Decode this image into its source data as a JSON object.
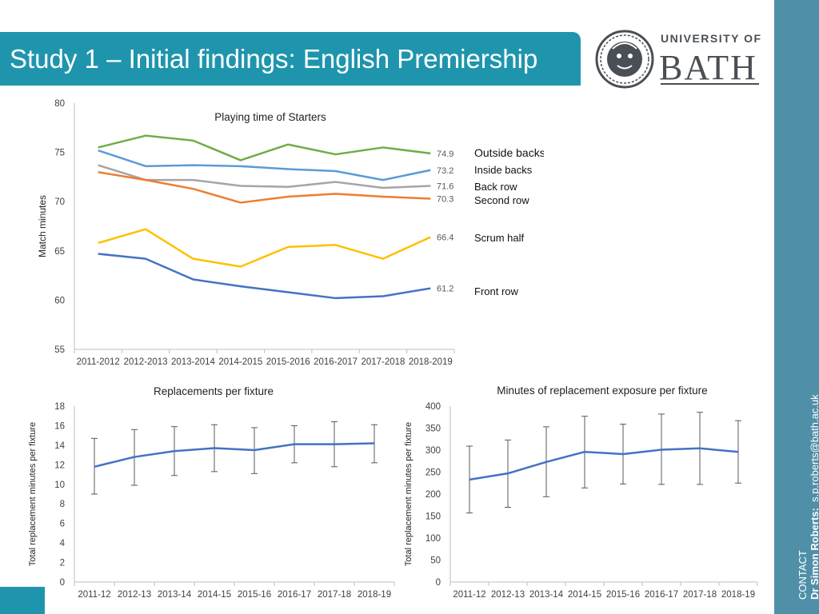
{
  "header": {
    "title": "Study 1 – Initial findings: English Premiership"
  },
  "logo": {
    "line1": "UNIVERSITY OF",
    "line2": "BATH",
    "icon": "bath-seal-icon"
  },
  "sidebar": {
    "contact_label": "CONTACT",
    "name": "Dr Simon Roberts:",
    "email": "s.p.roberts@bath.ac.uk"
  },
  "colors": {
    "accent": "#1f95ad",
    "sidebar": "#4f90a8",
    "front_row": "#4472c4",
    "scrum_half": "#ffc000",
    "second_row": "#ed7d31",
    "back_row": "#a5a5a5",
    "inside_backs": "#5b9bd5",
    "outside_backs": "#70ad47"
  },
  "chart_data": [
    {
      "type": "line",
      "title": "Playing time of Starters",
      "xlabel": "",
      "ylabel": "Match minutes",
      "ylim": [
        55,
        80
      ],
      "yticks": [
        55,
        60,
        65,
        70,
        75,
        80
      ],
      "categories": [
        "2011-2012",
        "2012-2013",
        "2013-2014",
        "2014-2015",
        "2015-2016",
        "2016-2017",
        "2017-2018",
        "2018-2019"
      ],
      "series": [
        {
          "name": "Outside backs",
          "color": "#70ad47",
          "values": [
            75.5,
            76.7,
            76.2,
            74.2,
            75.8,
            74.8,
            75.5,
            74.9
          ],
          "end_label": "74.9"
        },
        {
          "name": "Inside backs",
          "color": "#5b9bd5",
          "values": [
            75.2,
            73.6,
            73.7,
            73.6,
            73.3,
            73.1,
            72.2,
            73.2
          ],
          "end_label": "73.2"
        },
        {
          "name": "Back row",
          "color": "#a5a5a5",
          "values": [
            73.7,
            72.2,
            72.2,
            71.6,
            71.5,
            72.0,
            71.4,
            71.6
          ],
          "end_label": "71.6"
        },
        {
          "name": "Second row",
          "color": "#ed7d31",
          "values": [
            73.0,
            72.2,
            71.3,
            69.9,
            70.5,
            70.8,
            70.5,
            70.3
          ],
          "end_label": "70.3"
        },
        {
          "name": "Scrum half",
          "color": "#ffc000",
          "values": [
            65.8,
            67.2,
            64.2,
            63.4,
            65.4,
            65.6,
            64.2,
            66.4
          ],
          "end_label": "66.4"
        },
        {
          "name": "Front row",
          "color": "#4472c4",
          "values": [
            64.7,
            64.2,
            62.1,
            61.4,
            60.8,
            60.2,
            60.4,
            61.2
          ],
          "end_label": "61.2"
        }
      ],
      "legend": "right"
    },
    {
      "type": "line",
      "title": "Replacements per fixture",
      "xlabel": "",
      "ylabel": "Total replacement minutes per fixture",
      "ylim": [
        0,
        18
      ],
      "yticks": [
        0,
        2,
        4,
        6,
        8,
        10,
        12,
        14,
        16,
        18
      ],
      "categories": [
        "2011-12",
        "2012-13",
        "2013-14",
        "2014-15",
        "2015-16",
        "2016-17",
        "2017-18",
        "2018-19"
      ],
      "series": [
        {
          "name": "",
          "color": "#4472c4",
          "values": [
            11.8,
            12.8,
            13.4,
            13.7,
            13.5,
            14.1,
            14.1,
            14.2
          ],
          "error_low": [
            9.0,
            9.9,
            10.9,
            11.3,
            11.1,
            12.2,
            11.8,
            12.2
          ],
          "error_high": [
            14.7,
            15.6,
            15.9,
            16.1,
            15.8,
            16.0,
            16.4,
            16.1
          ]
        }
      ]
    },
    {
      "type": "line",
      "title": "Minutes of replacement exposure per fixture",
      "xlabel": "",
      "ylabel": "Total replacement minutes per fixture",
      "ylim": [
        0,
        400
      ],
      "yticks": [
        0,
        50,
        100,
        150,
        200,
        250,
        300,
        350,
        400
      ],
      "categories": [
        "2011-12",
        "2012-13",
        "2013-14",
        "2014-15",
        "2015-16",
        "2016-17",
        "2017-18",
        "2018-19"
      ],
      "series": [
        {
          "name": "",
          "color": "#4472c4",
          "values": [
            233,
            247,
            273,
            296,
            291,
            301,
            304,
            296
          ],
          "error_low": [
            157,
            170,
            194,
            214,
            223,
            222,
            222,
            225
          ],
          "error_high": [
            309,
            323,
            353,
            377,
            359,
            382,
            386,
            367
          ]
        }
      ]
    }
  ]
}
